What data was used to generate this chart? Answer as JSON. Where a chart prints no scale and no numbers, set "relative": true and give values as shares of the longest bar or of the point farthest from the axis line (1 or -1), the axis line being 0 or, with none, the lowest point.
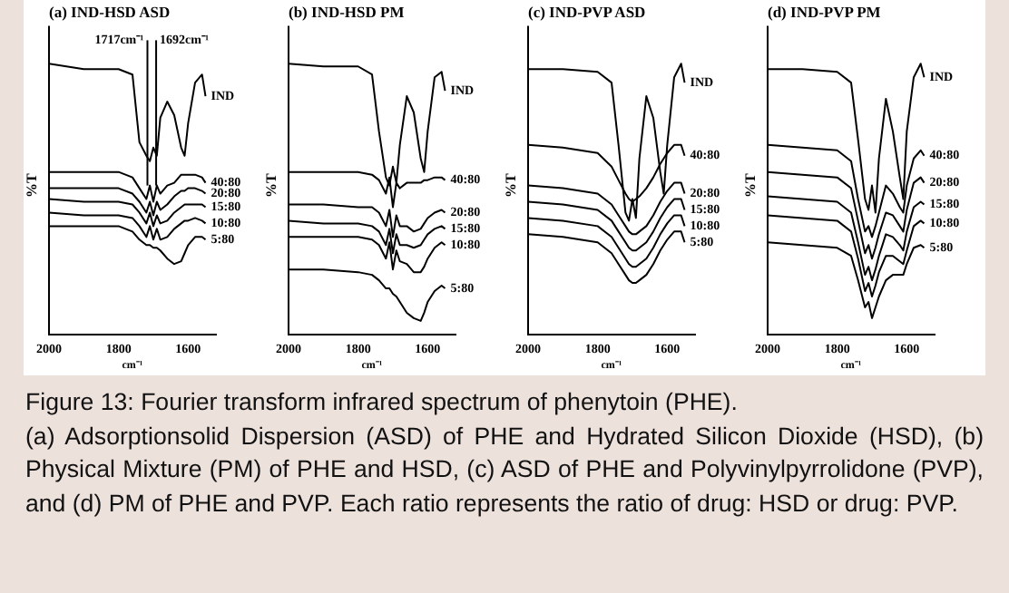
{
  "chart_data": [
    {
      "type": "line",
      "title": "(a) IND-HSD ASD",
      "xlabel": "cm⁻¹",
      "ylabel": "%T",
      "relative": true,
      "xlim": [
        2000,
        1520
      ],
      "xticks": [
        2000,
        1800,
        1600
      ],
      "x": [
        2000,
        1900,
        1800,
        1760,
        1740,
        1720,
        1710,
        1700,
        1690,
        1680,
        1660,
        1640,
        1620,
        1610,
        1600,
        1580,
        1560,
        1550
      ],
      "annotations": [
        {
          "text": "1717cm⁻¹",
          "x": 1717,
          "y": 0.55
        },
        {
          "text": "1692cm⁻¹",
          "x": 1692,
          "y": 0.55
        }
      ],
      "series": [
        {
          "name": "IND",
          "color": "#000000",
          "values": [
            1,
            0.98,
            0.98,
            0.96,
            0.71,
            0.66,
            0.64,
            0.69,
            0.66,
            0.8,
            0.86,
            0.81,
            0.69,
            0.66,
            0.78,
            0.93,
            0.96,
            0.88
          ]
        },
        {
          "name": "40:80",
          "color": "#000000",
          "values": [
            0.6,
            0.6,
            0.6,
            0.58,
            0.54,
            0.5,
            0.55,
            0.49,
            0.55,
            0.52,
            0.55,
            0.56,
            0.59,
            0.59,
            0.59,
            0.59,
            0.58,
            0.56
          ]
        },
        {
          "name": "20:80",
          "color": "#000000",
          "values": [
            0.54,
            0.54,
            0.54,
            0.52,
            0.49,
            0.45,
            0.49,
            0.44,
            0.49,
            0.46,
            0.48,
            0.51,
            0.53,
            0.53,
            0.54,
            0.54,
            0.53,
            0.52
          ]
        },
        {
          "name": "15:80",
          "color": "#000000",
          "values": [
            0.5,
            0.49,
            0.49,
            0.48,
            0.45,
            0.41,
            0.45,
            0.4,
            0.44,
            0.41,
            0.42,
            0.45,
            0.47,
            0.48,
            0.48,
            0.48,
            0.48,
            0.47
          ]
        },
        {
          "name": "10:80",
          "color": "#000000",
          "values": [
            0.45,
            0.44,
            0.44,
            0.43,
            0.4,
            0.36,
            0.4,
            0.35,
            0.39,
            0.35,
            0.36,
            0.39,
            0.41,
            0.42,
            0.42,
            0.43,
            0.42,
            0.41
          ]
        },
        {
          "name": "5:80",
          "color": "#000000",
          "values": [
            0.4,
            0.4,
            0.4,
            0.38,
            0.35,
            0.33,
            0.33,
            0.32,
            0.32,
            0.31,
            0.28,
            0.26,
            0.27,
            0.3,
            0.33,
            0.36,
            0.36,
            0.35
          ]
        }
      ]
    },
    {
      "type": "line",
      "title": "(b) IND-HSD PM",
      "xlabel": "cm⁻¹",
      "ylabel": "%T",
      "relative": true,
      "xlim": [
        2000,
        1520
      ],
      "xticks": [
        2000,
        1800,
        1600
      ],
      "x": [
        2000,
        1900,
        1800,
        1760,
        1740,
        1720,
        1710,
        1700,
        1690,
        1680,
        1660,
        1640,
        1620,
        1610,
        1600,
        1580,
        1560,
        1550
      ],
      "series": [
        {
          "name": "IND",
          "color": "#000000",
          "values": [
            1,
            0.99,
            0.99,
            0.96,
            0.75,
            0.58,
            0.55,
            0.62,
            0.56,
            0.7,
            0.88,
            0.82,
            0.65,
            0.6,
            0.75,
            0.95,
            0.97,
            0.9
          ]
        },
        {
          "name": "40:80",
          "color": "#000000",
          "values": [
            0.6,
            0.6,
            0.6,
            0.59,
            0.57,
            0.52,
            0.58,
            0.47,
            0.56,
            0.54,
            0.56,
            0.56,
            0.56,
            0.57,
            0.57,
            0.58,
            0.58,
            0.57
          ]
        },
        {
          "name": "20:80",
          "color": "#000000",
          "values": [
            0.48,
            0.48,
            0.47,
            0.47,
            0.45,
            0.4,
            0.46,
            0.36,
            0.44,
            0.4,
            0.4,
            0.38,
            0.39,
            0.41,
            0.43,
            0.45,
            0.46,
            0.45
          ]
        },
        {
          "name": "15:80",
          "color": "#000000",
          "values": [
            0.42,
            0.41,
            0.41,
            0.4,
            0.38,
            0.33,
            0.39,
            0.3,
            0.37,
            0.33,
            0.33,
            0.32,
            0.33,
            0.35,
            0.37,
            0.39,
            0.4,
            0.39
          ]
        },
        {
          "name": "10:80",
          "color": "#000000",
          "values": [
            0.36,
            0.36,
            0.36,
            0.35,
            0.33,
            0.28,
            0.34,
            0.24,
            0.31,
            0.27,
            0.26,
            0.23,
            0.23,
            0.25,
            0.28,
            0.32,
            0.34,
            0.33
          ]
        },
        {
          "name": "5:80",
          "color": "#000000",
          "values": [
            0.24,
            0.24,
            0.23,
            0.22,
            0.2,
            0.17,
            0.17,
            0.15,
            0.14,
            0.12,
            0.08,
            0.06,
            0.05,
            0.08,
            0.12,
            0.16,
            0.18,
            0.17
          ]
        }
      ]
    },
    {
      "type": "line",
      "title": "(c) IND-PVP ASD",
      "xlabel": "cm⁻¹",
      "ylabel": "%T",
      "relative": true,
      "xlim": [
        2000,
        1520
      ],
      "xticks": [
        2000,
        1800,
        1600
      ],
      "x": [
        2000,
        1900,
        1800,
        1760,
        1740,
        1720,
        1710,
        1700,
        1690,
        1680,
        1660,
        1640,
        1620,
        1610,
        1600,
        1580,
        1560,
        1550
      ],
      "series": [
        {
          "name": "IND",
          "color": "#000000",
          "values": [
            0.98,
            0.98,
            0.97,
            0.93,
            0.7,
            0.45,
            0.42,
            0.5,
            0.43,
            0.65,
            0.88,
            0.8,
            0.6,
            0.52,
            0.7,
            0.95,
            1,
            0.93
          ]
        },
        {
          "name": "40:80",
          "color": "#000000",
          "values": [
            0.7,
            0.69,
            0.67,
            0.62,
            0.57,
            0.52,
            0.5,
            0.49,
            0.5,
            0.51,
            0.54,
            0.58,
            0.63,
            0.65,
            0.67,
            0.7,
            0.7,
            0.66
          ]
        },
        {
          "name": "20:80",
          "color": "#000000",
          "values": [
            0.55,
            0.54,
            0.52,
            0.48,
            0.44,
            0.4,
            0.38,
            0.37,
            0.37,
            0.38,
            0.4,
            0.44,
            0.49,
            0.51,
            0.53,
            0.56,
            0.56,
            0.52
          ]
        },
        {
          "name": "15:80",
          "color": "#000000",
          "values": [
            0.49,
            0.48,
            0.46,
            0.42,
            0.38,
            0.34,
            0.32,
            0.31,
            0.31,
            0.32,
            0.34,
            0.38,
            0.43,
            0.45,
            0.47,
            0.5,
            0.5,
            0.46
          ]
        },
        {
          "name": "10:80",
          "color": "#000000",
          "values": [
            0.43,
            0.42,
            0.4,
            0.36,
            0.32,
            0.28,
            0.26,
            0.25,
            0.25,
            0.26,
            0.28,
            0.32,
            0.37,
            0.39,
            0.41,
            0.44,
            0.44,
            0.4
          ]
        },
        {
          "name": "5:80",
          "color": "#000000",
          "values": [
            0.37,
            0.36,
            0.34,
            0.3,
            0.26,
            0.22,
            0.2,
            0.19,
            0.19,
            0.2,
            0.22,
            0.26,
            0.31,
            0.33,
            0.35,
            0.38,
            0.38,
            0.34
          ]
        }
      ]
    },
    {
      "type": "line",
      "title": "(d) IND-PVP PM",
      "xlabel": "cm⁻¹",
      "ylabel": "%T",
      "relative": true,
      "xlim": [
        2000,
        1520
      ],
      "xticks": [
        2000,
        1800,
        1600
      ],
      "x": [
        2000,
        1900,
        1800,
        1760,
        1740,
        1720,
        1710,
        1700,
        1690,
        1680,
        1660,
        1640,
        1620,
        1610,
        1600,
        1580,
        1560,
        1550
      ],
      "series": [
        {
          "name": "IND",
          "color": "#000000",
          "values": [
            0.98,
            0.98,
            0.97,
            0.93,
            0.72,
            0.5,
            0.46,
            0.55,
            0.45,
            0.65,
            0.87,
            0.75,
            0.58,
            0.5,
            0.75,
            0.95,
            1,
            0.95
          ]
        },
        {
          "name": "40:80",
          "color": "#000000",
          "values": [
            0.7,
            0.69,
            0.68,
            0.64,
            0.5,
            0.38,
            0.4,
            0.36,
            0.4,
            0.45,
            0.55,
            0.52,
            0.47,
            0.45,
            0.55,
            0.65,
            0.68,
            0.66
          ]
        },
        {
          "name": "20:80",
          "color": "#000000",
          "values": [
            0.6,
            0.59,
            0.58,
            0.54,
            0.42,
            0.3,
            0.33,
            0.28,
            0.32,
            0.37,
            0.45,
            0.44,
            0.4,
            0.38,
            0.46,
            0.56,
            0.58,
            0.56
          ]
        },
        {
          "name": "15:80",
          "color": "#000000",
          "values": [
            0.51,
            0.5,
            0.49,
            0.45,
            0.34,
            0.22,
            0.25,
            0.2,
            0.24,
            0.29,
            0.37,
            0.36,
            0.33,
            0.31,
            0.38,
            0.47,
            0.49,
            0.48
          ]
        },
        {
          "name": "10:80",
          "color": "#000000",
          "values": [
            0.44,
            0.43,
            0.42,
            0.38,
            0.28,
            0.16,
            0.19,
            0.14,
            0.18,
            0.23,
            0.29,
            0.29,
            0.27,
            0.26,
            0.31,
            0.4,
            0.42,
            0.41
          ]
        },
        {
          "name": "5:80",
          "color": "#000000",
          "values": [
            0.34,
            0.33,
            0.32,
            0.29,
            0.2,
            0.1,
            0.12,
            0.06,
            0.1,
            0.14,
            0.2,
            0.22,
            0.22,
            0.22,
            0.26,
            0.32,
            0.33,
            0.32
          ]
        }
      ]
    },
    {
      "type": "other",
      "title": "Figure 13: Fourier transform infrared spectrum of phenytoin (PHE).",
      "annotations": [
        "(a) Adsorptionsolid Dispersion (ASD) of PHE and Hydrated Silicon Dioxide (HSD), (b) Physical Mixture (PM) of PHE and HSD, (c) ASD of PHE and Polyvinylpyrrolidone (PVP), and (d) PM of PHE and PVP. Each ratio represents the ratio of drug: HSD or drug: PVP."
      ]
    }
  ]
}
